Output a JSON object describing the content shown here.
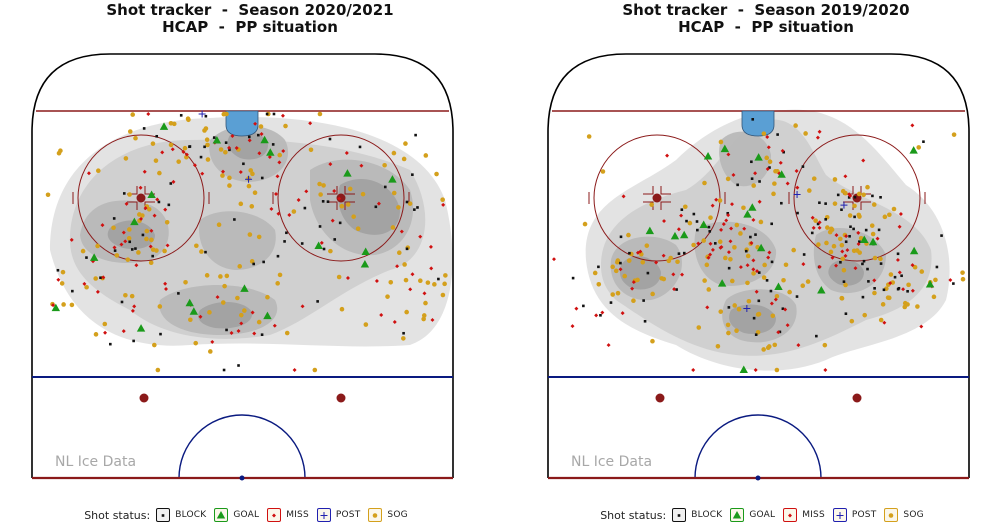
{
  "shot_statuses": [
    {
      "key": "block",
      "label": "BLOCK",
      "color": "#111111",
      "shape": "square"
    },
    {
      "key": "goal",
      "label": "GOAL",
      "color": "#1a9a1a",
      "shape": "triangle"
    },
    {
      "key": "miss",
      "label": "MISS",
      "color": "#d01010",
      "shape": "diamond"
    },
    {
      "key": "post",
      "label": "POST",
      "color": "#2020b0",
      "shape": "plus"
    },
    {
      "key": "sog",
      "label": "SOG",
      "color": "#d4a01c",
      "shape": "circle"
    }
  ],
  "legend_label": "Shot status:",
  "watermark": "NL Ice Data",
  "colors": {
    "redline": "#8b1a1a",
    "blueline": "#0a1a80",
    "goal_crease": "#5a9fd4",
    "density_levels": [
      "#e2e2e2",
      "#cfcfcf",
      "#b8b8b8",
      "#a1a1a1"
    ]
  },
  "chart_data": [
    {
      "type": "scatter",
      "title": "Shot tracker  -  Season 2020/2021",
      "subtitle": "HCAP  -  PP situation",
      "seed": 7,
      "counts": {
        "block": 70,
        "goal": 18,
        "miss": 95,
        "post": 2,
        "sog": 150
      }
    },
    {
      "type": "scatter",
      "title": "Shot tracker  -  Season 2019/2020",
      "subtitle": "HCAP  -  PP situation",
      "seed": 23,
      "counts": {
        "block": 95,
        "goal": 20,
        "miss": 110,
        "post": 3,
        "sog": 165
      }
    }
  ]
}
